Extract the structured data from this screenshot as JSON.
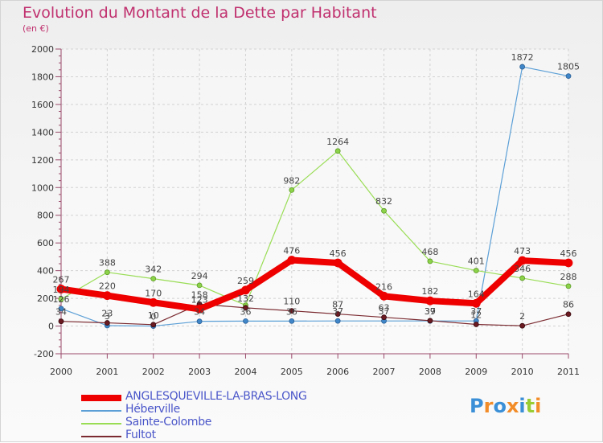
{
  "chart_data": {
    "type": "line",
    "title": "Evolution du Montant de la Dette par Habitant",
    "subtitle": "(en €)",
    "ylim": [
      -200,
      2000
    ],
    "yticks": [
      -200,
      0,
      200,
      400,
      600,
      800,
      1000,
      1200,
      1400,
      1600,
      1800,
      2000
    ],
    "categories": [
      "2000",
      "2001",
      "2002",
      "2003",
      "2004",
      "2005",
      "2006",
      "2007",
      "2008",
      "2009",
      "2010",
      "2011"
    ],
    "series": [
      {
        "name": "ANGLESQUEVILLE-LA-BRAS-LONG",
        "color": "#ee0000",
        "values": [
          267,
          220,
          170,
          123,
          259,
          476,
          456,
          216,
          182,
          164,
          473,
          456
        ],
        "labels": [
          "267",
          "220",
          "170",
          "123",
          "259",
          "476",
          "456",
          "216",
          "182",
          "164",
          "473",
          "456"
        ]
      },
      {
        "name": "Héberville",
        "color": "#5b9fd6",
        "values": [
          126,
          3,
          0,
          34,
          36,
          36,
          37,
          37,
          37,
          37,
          1872,
          1805
        ],
        "labels": [
          "126",
          "3",
          "0",
          "34",
          "36",
          "36",
          "37",
          "37",
          "37",
          "37",
          "1872",
          "1805"
        ]
      },
      {
        "name": "Sainte-Colombe",
        "color": "#99dd55",
        "values": [
          194,
          388,
          342,
          294,
          150,
          982,
          1264,
          832,
          468,
          401,
          346,
          288
        ],
        "labels": [
          "194",
          "388",
          "342",
          "294",
          "",
          "982",
          "1264",
          "832",
          "468",
          "401",
          "346",
          "288"
        ]
      },
      {
        "name": "Fultot",
        "color": "#7a2a30",
        "values": [
          34,
          23,
          10,
          158,
          132,
          110,
          87,
          63,
          39,
          12,
          2,
          86
        ],
        "labels": [
          "34",
          "23",
          "10",
          "158",
          "132",
          "110",
          "87",
          "63",
          "39",
          "12",
          "2",
          "86"
        ]
      }
    ]
  },
  "logo": {
    "letters": [
      "P",
      "r",
      "o",
      "x",
      "i",
      "t",
      "i"
    ],
    "colors": [
      "#3a8fd6",
      "#f28c28",
      "#3a8fd6",
      "#f28c28",
      "#3a8fd6",
      "#99cc33",
      "#f28c28"
    ]
  }
}
